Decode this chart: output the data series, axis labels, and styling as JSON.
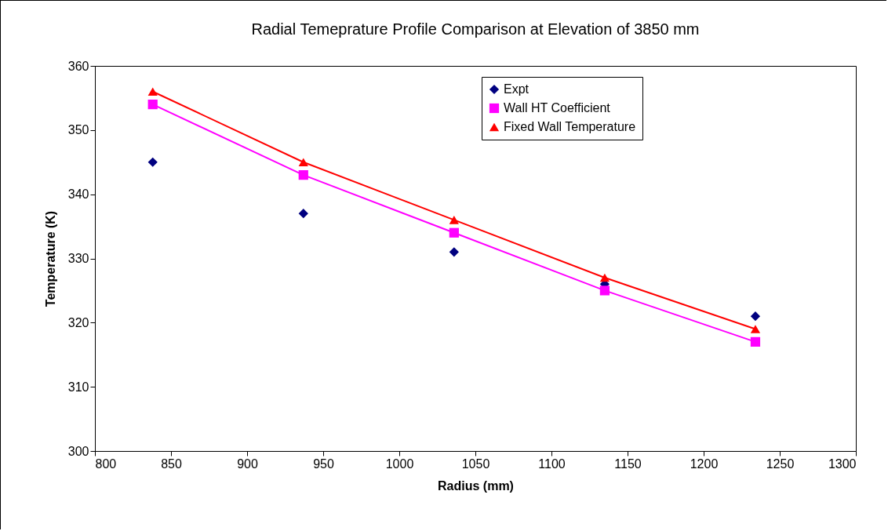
{
  "chart_data": {
    "type": "line",
    "title": "Radial Temeprature Profile Comparison at Elevation of 3850 mm",
    "xlabel": "Radius (mm)",
    "ylabel": "Temperature (K)",
    "x": [
      838,
      937,
      1036,
      1135,
      1234
    ],
    "xlim": [
      800,
      1300
    ],
    "xticks": [
      800,
      850,
      900,
      950,
      1000,
      1050,
      1100,
      1150,
      1200,
      1250,
      1300
    ],
    "ylim": [
      300,
      360
    ],
    "yticks": [
      300,
      310,
      320,
      330,
      340,
      350,
      360
    ],
    "legend": "top right",
    "series": [
      {
        "name": "Expt",
        "type": "scatter",
        "marker": "diamond",
        "color": "#000080",
        "values": [
          345,
          337,
          331,
          326,
          321
        ]
      },
      {
        "name": "Wall HT Coefficient",
        "type": "line",
        "marker": "square",
        "color": "#ff00ff",
        "values": [
          354,
          343,
          334,
          325,
          317
        ]
      },
      {
        "name": "Fixed Wall Temperature",
        "type": "line",
        "marker": "triangle",
        "color": "#ff0000",
        "values": [
          356,
          345,
          336,
          327,
          319
        ]
      }
    ]
  }
}
